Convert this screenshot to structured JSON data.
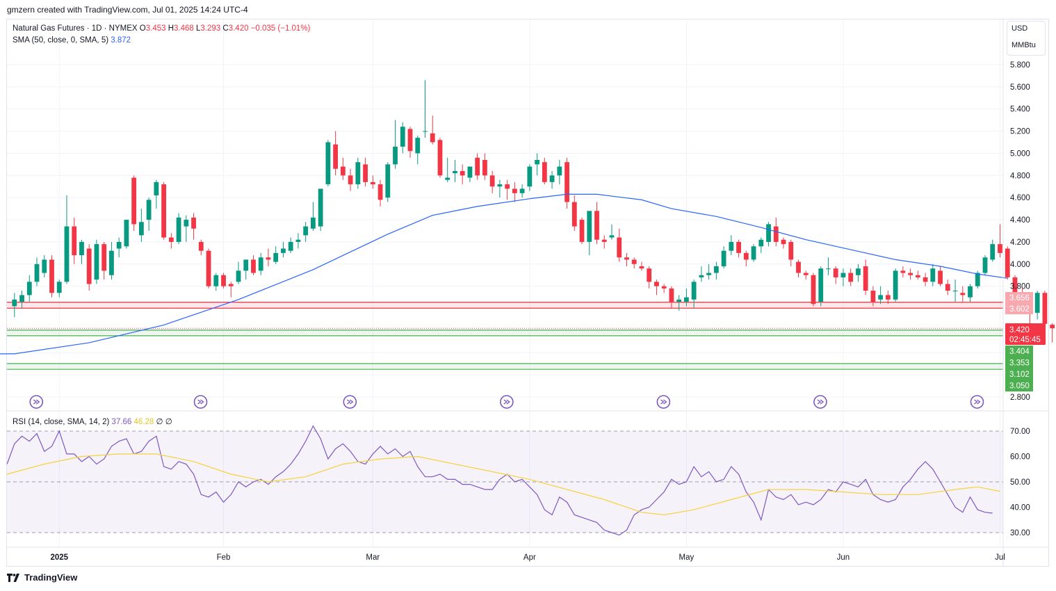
{
  "header": {
    "created_by": "gmzern created with TradingView.com, Jul 01, 2025 14:24 UTC-4"
  },
  "legend": {
    "symbol": "Natural Gas Futures · 1D · NYMEX",
    "o_label": "O",
    "o": "3.453",
    "h_label": "H",
    "h": "3.468",
    "l_label": "L",
    "l": "3.293",
    "c_label": "C",
    "c": "3.420",
    "change": "−0.035 (−1.01%)",
    "sma_label": "SMA (50, close, 0, SMA, 5)",
    "sma_value": "3.872",
    "rsi_label": "RSI (14, close, SMA, 14, 2)",
    "rsi_value": "37.66",
    "rsi_sma_value": "46.28",
    "rsi_extra1": "∅",
    "rsi_extra2": "∅"
  },
  "units": {
    "currency": "USD",
    "unit": "MMBtu"
  },
  "price_badges": {
    "last": "3.420",
    "countdown": "02:45:45",
    "red_upper": "3.656",
    "red_lower": "3.602",
    "green": [
      "3.404",
      "3.353",
      "3.102",
      "3.050"
    ]
  },
  "footer": {
    "brand": "TradingView"
  },
  "colors": {
    "up": "#089981",
    "down": "#f23645",
    "sma": "#2962ff",
    "rsi": "#7e57c2",
    "rsi_sma": "#f5d33c",
    "zone_red": "#f23645",
    "zone_green": "#4caf50"
  },
  "chart_data": [
    {
      "type": "candlestick",
      "title": "Natural Gas Futures · 1D · NYMEX",
      "y_ticks": [
        2.8,
        3.0,
        3.2,
        3.4,
        3.6,
        3.8,
        4.0,
        4.2,
        4.4,
        4.6,
        4.8,
        5.0,
        5.2,
        5.4,
        5.6,
        5.8
      ],
      "ylim": [
        2.7,
        5.96
      ],
      "x_ticks": [
        {
          "label": "2025",
          "index": 6
        },
        {
          "label": "Feb",
          "index": 28
        },
        {
          "label": "Mar",
          "index": 48
        },
        {
          "label": "Apr",
          "index": 69
        },
        {
          "label": "May",
          "index": 90
        },
        {
          "label": "Jun",
          "index": 111
        },
        {
          "label": "Jul",
          "index": 132
        }
      ],
      "ohlc": [
        [
          3.62,
          3.74,
          3.52,
          3.68
        ],
        [
          3.66,
          3.76,
          3.6,
          3.72
        ],
        [
          3.72,
          3.9,
          3.66,
          3.84
        ],
        [
          3.84,
          4.06,
          3.8,
          4.0
        ],
        [
          3.92,
          4.08,
          3.88,
          4.04
        ],
        [
          4.04,
          4.08,
          3.7,
          3.74
        ],
        [
          3.74,
          3.86,
          3.7,
          3.84
        ],
        [
          3.84,
          4.62,
          3.82,
          4.34
        ],
        [
          4.34,
          4.42,
          4.0,
          4.08
        ],
        [
          4.08,
          4.22,
          4.0,
          4.2
        ],
        [
          4.14,
          4.18,
          3.76,
          3.82
        ],
        [
          3.86,
          4.22,
          3.82,
          4.18
        ],
        [
          4.18,
          4.2,
          3.86,
          3.94
        ],
        [
          3.9,
          4.2,
          3.86,
          4.12
        ],
        [
          4.14,
          4.24,
          4.06,
          4.2
        ],
        [
          4.16,
          4.4,
          4.14,
          4.4
        ],
        [
          4.78,
          4.8,
          4.3,
          4.36
        ],
        [
          4.26,
          4.5,
          4.2,
          4.38
        ],
        [
          4.4,
          4.6,
          4.3,
          4.58
        ],
        [
          4.62,
          4.76,
          4.5,
          4.74
        ],
        [
          4.72,
          4.74,
          4.22,
          4.24
        ],
        [
          4.24,
          4.28,
          4.14,
          4.2
        ],
        [
          4.2,
          4.46,
          4.18,
          4.42
        ],
        [
          4.34,
          4.44,
          4.2,
          4.4
        ],
        [
          4.42,
          4.46,
          4.22,
          4.32
        ],
        [
          4.2,
          4.22,
          4.08,
          4.12
        ],
        [
          4.12,
          4.14,
          3.78,
          3.8
        ],
        [
          3.8,
          3.92,
          3.76,
          3.9
        ],
        [
          3.9,
          3.92,
          3.78,
          3.8
        ],
        [
          3.82,
          3.84,
          3.7,
          3.8
        ],
        [
          3.84,
          4.02,
          3.82,
          3.94
        ],
        [
          3.94,
          4.04,
          3.86,
          4.04
        ],
        [
          4.04,
          4.08,
          3.9,
          3.92
        ],
        [
          3.94,
          4.1,
          3.9,
          4.06
        ],
        [
          4.06,
          4.14,
          3.98,
          4.04
        ],
        [
          4.02,
          4.16,
          4.0,
          4.1
        ],
        [
          4.1,
          4.2,
          4.06,
          4.14
        ],
        [
          4.12,
          4.24,
          4.1,
          4.2
        ],
        [
          4.2,
          4.28,
          4.14,
          4.22
        ],
        [
          4.26,
          4.38,
          4.2,
          4.34
        ],
        [
          4.32,
          4.56,
          4.3,
          4.42
        ],
        [
          4.34,
          4.66,
          4.3,
          4.68
        ],
        [
          4.72,
          5.12,
          4.7,
          5.1
        ],
        [
          5.08,
          5.2,
          4.8,
          4.86
        ],
        [
          4.88,
          4.96,
          4.76,
          4.8
        ],
        [
          4.8,
          4.86,
          4.66,
          4.72
        ],
        [
          4.72,
          4.96,
          4.68,
          4.92
        ],
        [
          4.9,
          4.96,
          4.7,
          4.74
        ],
        [
          4.74,
          4.8,
          4.68,
          4.72
        ],
        [
          4.72,
          4.76,
          4.52,
          4.58
        ],
        [
          4.6,
          4.92,
          4.56,
          4.9
        ],
        [
          4.9,
          5.3,
          4.86,
          5.06
        ],
        [
          5.06,
          5.28,
          5.0,
          5.24
        ],
        [
          5.22,
          5.24,
          4.96,
          5.02
        ],
        [
          5.0,
          5.16,
          4.9,
          5.14
        ],
        [
          5.2,
          5.66,
          5.14,
          5.2
        ],
        [
          5.18,
          5.34,
          5.08,
          5.1
        ],
        [
          5.12,
          5.14,
          4.78,
          4.8
        ],
        [
          4.76,
          4.96,
          4.74,
          4.78
        ],
        [
          4.82,
          4.94,
          4.74,
          4.84
        ],
        [
          4.84,
          4.9,
          4.72,
          4.8
        ],
        [
          4.78,
          4.88,
          4.74,
          4.88
        ],
        [
          4.96,
          5.0,
          4.76,
          4.8
        ],
        [
          4.94,
          5.0,
          4.76,
          4.8
        ],
        [
          4.8,
          4.84,
          4.64,
          4.7
        ],
        [
          4.7,
          4.76,
          4.6,
          4.72
        ],
        [
          4.72,
          4.76,
          4.58,
          4.68
        ],
        [
          4.68,
          4.74,
          4.56,
          4.64
        ],
        [
          4.64,
          4.72,
          4.6,
          4.68
        ],
        [
          4.7,
          4.9,
          4.66,
          4.88
        ],
        [
          4.9,
          5.0,
          4.8,
          4.94
        ],
        [
          4.92,
          4.96,
          4.72,
          4.74
        ],
        [
          4.74,
          4.84,
          4.68,
          4.8
        ],
        [
          4.8,
          4.94,
          4.72,
          4.88
        ],
        [
          4.92,
          4.96,
          4.5,
          4.56
        ],
        [
          4.56,
          4.62,
          4.3,
          4.34
        ],
        [
          4.4,
          4.42,
          4.18,
          4.2
        ],
        [
          4.2,
          4.46,
          4.08,
          4.48
        ],
        [
          4.48,
          4.56,
          4.18,
          4.22
        ],
        [
          4.22,
          4.26,
          4.14,
          4.2
        ],
        [
          4.24,
          4.36,
          4.22,
          4.26
        ],
        [
          4.24,
          4.32,
          4.02,
          4.06
        ],
        [
          4.06,
          4.1,
          3.98,
          4.04
        ],
        [
          4.04,
          4.06,
          3.96,
          4.0
        ],
        [
          3.98,
          4.02,
          3.94,
          3.96
        ],
        [
          3.96,
          3.98,
          3.78,
          3.84
        ],
        [
          3.84,
          3.86,
          3.72,
          3.8
        ],
        [
          3.8,
          3.82,
          3.74,
          3.78
        ],
        [
          3.78,
          3.8,
          3.6,
          3.66
        ],
        [
          3.66,
          3.72,
          3.58,
          3.68
        ],
        [
          3.66,
          3.78,
          3.62,
          3.7
        ],
        [
          3.68,
          3.86,
          3.6,
          3.84
        ],
        [
          3.88,
          3.98,
          3.84,
          3.9
        ],
        [
          3.9,
          4.0,
          3.86,
          3.92
        ],
        [
          3.92,
          4.02,
          3.86,
          3.98
        ],
        [
          3.98,
          4.16,
          3.96,
          4.12
        ],
        [
          4.12,
          4.26,
          4.08,
          4.2
        ],
        [
          4.2,
          4.22,
          4.06,
          4.1
        ],
        [
          4.1,
          4.12,
          3.98,
          4.04
        ],
        [
          4.04,
          4.18,
          4.02,
          4.16
        ],
        [
          4.16,
          4.24,
          4.1,
          4.22
        ],
        [
          4.2,
          4.38,
          4.16,
          4.36
        ],
        [
          4.34,
          4.42,
          4.16,
          4.2
        ],
        [
          4.22,
          4.24,
          4.14,
          4.18
        ],
        [
          4.2,
          4.22,
          3.98,
          4.04
        ],
        [
          4.02,
          4.04,
          3.88,
          3.92
        ],
        [
          3.92,
          3.94,
          3.86,
          3.9
        ],
        [
          3.9,
          3.92,
          3.62,
          3.64
        ],
        [
          3.66,
          3.98,
          3.62,
          3.96
        ],
        [
          3.96,
          4.06,
          3.9,
          3.96
        ],
        [
          3.96,
          3.98,
          3.82,
          3.88
        ],
        [
          3.88,
          3.96,
          3.8,
          3.92
        ],
        [
          3.92,
          3.96,
          3.8,
          3.84
        ],
        [
          3.9,
          4.0,
          3.84,
          3.96
        ],
        [
          3.98,
          4.04,
          3.72,
          3.76
        ],
        [
          3.76,
          3.8,
          3.62,
          3.66
        ],
        [
          3.68,
          3.8,
          3.64,
          3.72
        ],
        [
          3.72,
          3.76,
          3.64,
          3.68
        ],
        [
          3.68,
          3.96,
          3.66,
          3.94
        ],
        [
          3.94,
          3.98,
          3.88,
          3.92
        ],
        [
          3.92,
          3.96,
          3.86,
          3.9
        ],
        [
          3.9,
          3.94,
          3.86,
          3.88
        ],
        [
          3.88,
          3.92,
          3.8,
          3.84
        ],
        [
          3.84,
          4.0,
          3.8,
          3.96
        ],
        [
          3.94,
          3.98,
          3.8,
          3.82
        ],
        [
          3.82,
          3.86,
          3.72,
          3.76
        ],
        [
          3.76,
          3.86,
          3.66,
          3.76
        ],
        [
          3.74,
          3.8,
          3.66,
          3.72
        ],
        [
          3.7,
          3.82,
          3.66,
          3.8
        ],
        [
          3.8,
          3.94,
          3.78,
          3.92
        ],
        [
          3.92,
          4.08,
          3.9,
          4.06
        ],
        [
          4.04,
          4.22,
          4.02,
          4.18
        ],
        [
          4.18,
          4.36,
          4.06,
          4.1
        ],
        [
          4.14,
          4.16,
          3.86,
          3.88
        ],
        [
          3.88,
          3.9,
          3.72,
          3.74
        ],
        [
          3.74,
          3.78,
          3.56,
          3.58
        ],
        [
          3.58,
          3.62,
          3.4,
          3.56
        ],
        [
          3.56,
          3.76,
          3.5,
          3.74
        ],
        [
          3.74,
          3.76,
          3.44,
          3.46
        ],
        [
          3.453,
          3.468,
          3.293,
          3.42
        ]
      ],
      "sma_50": [
        [
          0,
          3.19
        ],
        [
          10,
          3.29
        ],
        [
          20,
          3.45
        ],
        [
          30,
          3.68
        ],
        [
          40,
          3.95
        ],
        [
          50,
          4.27
        ],
        [
          56,
          4.44
        ],
        [
          62,
          4.52
        ],
        [
          69,
          4.59
        ],
        [
          74,
          4.63
        ],
        [
          78,
          4.63
        ],
        [
          84,
          4.58
        ],
        [
          88,
          4.5
        ],
        [
          94,
          4.43
        ],
        [
          100,
          4.33
        ],
        [
          106,
          4.22
        ],
        [
          112,
          4.13
        ],
        [
          118,
          4.04
        ],
        [
          124,
          3.98
        ],
        [
          129,
          3.91
        ],
        [
          133,
          3.872
        ]
      ]
    },
    {
      "type": "line",
      "title": "RSI (14, close, SMA, 14, 2)",
      "y_ticks": [
        30,
        40,
        50,
        60,
        70
      ],
      "ylim": [
        28,
        72
      ],
      "bands": {
        "upper": 70,
        "middle": 50,
        "lower": 30
      },
      "rsi": [
        57,
        65,
        68,
        66,
        69,
        62,
        64,
        70,
        61,
        61,
        58,
        60,
        57,
        59,
        64,
        66,
        67,
        61,
        62,
        66,
        68,
        56,
        55,
        58,
        57,
        53,
        45,
        44,
        46,
        42,
        45,
        50,
        48,
        50,
        51,
        49,
        52,
        54,
        57,
        61,
        66,
        72,
        67,
        59,
        63,
        65,
        62,
        58,
        57,
        61,
        64,
        61,
        63,
        60,
        62,
        56,
        52,
        52,
        53,
        51,
        51,
        49,
        49,
        48,
        47,
        47,
        51,
        53,
        50,
        51,
        48,
        45,
        39,
        37,
        44,
        42,
        37,
        36,
        35,
        34,
        31,
        30,
        29,
        31,
        37,
        39,
        40,
        43,
        46,
        51,
        49,
        50,
        56,
        52,
        54,
        50,
        51,
        56,
        53,
        46,
        42,
        35,
        47,
        44,
        43,
        45,
        41,
        42,
        41,
        43,
        47,
        46,
        50,
        49,
        48,
        51,
        45,
        43,
        42,
        43,
        48,
        51,
        55,
        58,
        55,
        50,
        45,
        40,
        38,
        44,
        39,
        38,
        37.66
      ],
      "rsi_sma": [
        [
          0,
          53
        ],
        [
          5,
          57
        ],
        [
          10,
          60
        ],
        [
          15,
          61
        ],
        [
          20,
          61
        ],
        [
          25,
          58
        ],
        [
          30,
          53
        ],
        [
          35,
          50
        ],
        [
          40,
          52
        ],
        [
          45,
          57
        ],
        [
          50,
          59
        ],
        [
          55,
          60
        ],
        [
          60,
          57
        ],
        [
          65,
          54
        ],
        [
          70,
          51
        ],
        [
          75,
          47
        ],
        [
          80,
          43
        ],
        [
          85,
          38
        ],
        [
          88,
          37
        ],
        [
          92,
          39
        ],
        [
          97,
          43
        ],
        [
          102,
          47
        ],
        [
          107,
          47
        ],
        [
          112,
          46
        ],
        [
          117,
          45
        ],
        [
          122,
          45
        ],
        [
          127,
          47
        ],
        [
          130,
          48
        ],
        [
          133,
          46.28
        ]
      ]
    }
  ]
}
